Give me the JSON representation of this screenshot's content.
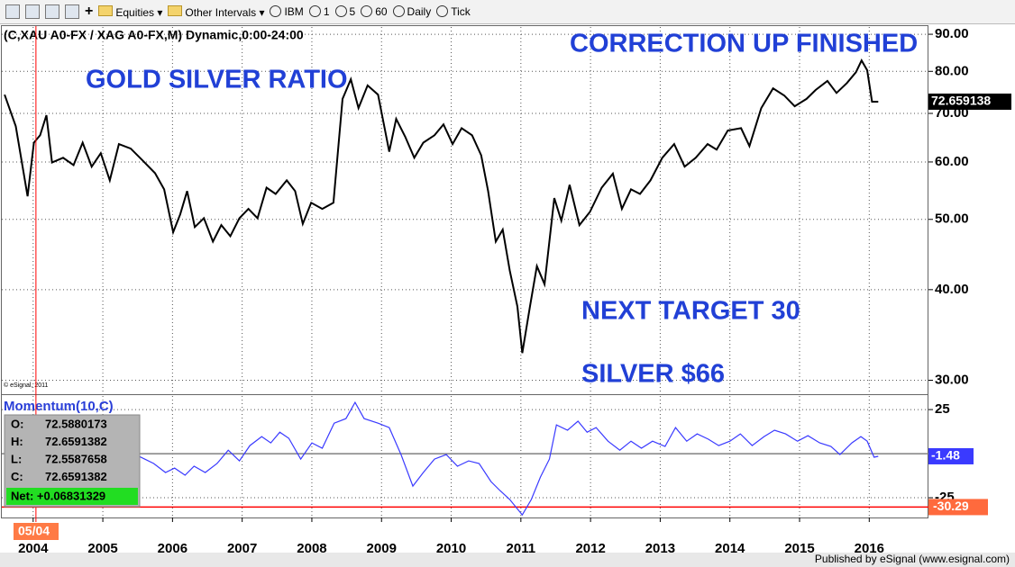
{
  "toolbar": {
    "items": [
      "Equities",
      "Other Intervals",
      "IBM",
      "1",
      "5",
      "60",
      "Daily",
      "Tick"
    ]
  },
  "chart_data": [
    {
      "type": "line",
      "title": "(C,XAU A0-FX / XAG A0-FX,M) Dynamic,0:00-24:00",
      "log": true,
      "color": "#000000",
      "x": [
        2003.59,
        2003.75,
        2003.92,
        2004.01,
        2004.1,
        2004.19,
        2004.27,
        2004.43,
        2004.58,
        2004.71,
        2004.84,
        2004.97,
        2005.1,
        2005.23,
        2005.4,
        2005.57,
        2005.75,
        2005.88,
        2006.01,
        2006.11,
        2006.21,
        2006.32,
        2006.45,
        2006.58,
        2006.7,
        2006.83,
        2006.96,
        2007.09,
        2007.22,
        2007.35,
        2007.48,
        2007.64,
        2007.76,
        2007.87,
        2007.99,
        2008.15,
        2008.31,
        2008.44,
        2008.56,
        2008.67,
        2008.8,
        2008.95,
        2009.11,
        2009.21,
        2009.34,
        2009.47,
        2009.6,
        2009.76,
        2009.89,
        2010.02,
        2010.15,
        2010.3,
        2010.43,
        2010.53,
        2010.64,
        2010.74,
        2010.84,
        2010.95,
        2011.02,
        2011.13,
        2011.23,
        2011.34,
        2011.48,
        2011.58,
        2011.7,
        2011.84,
        2011.99,
        2012.16,
        2012.32,
        2012.45,
        2012.58,
        2012.71,
        2012.86,
        2013.03,
        2013.2,
        2013.35,
        2013.51,
        2013.68,
        2013.81,
        2013.97,
        2014.16,
        2014.28,
        2014.45,
        2014.62,
        2014.78,
        2014.93,
        2015.1,
        2015.23,
        2015.4,
        2015.53,
        2015.68,
        2015.81,
        2015.89,
        2015.97,
        2016.04,
        2016.13
      ],
      "values": [
        74.3,
        67.2,
        53.8,
        63.8,
        65.3,
        69.6,
        59.9,
        60.8,
        59.4,
        63.8,
        59.1,
        61.7,
        56.6,
        63.5,
        62.6,
        60.3,
        57.9,
        55.0,
        48.0,
        50.8,
        54.7,
        48.8,
        50.2,
        46.6,
        49.1,
        47.4,
        50.2,
        51.7,
        50.2,
        55.3,
        54.2,
        56.6,
        54.7,
        49.3,
        52.7,
        51.7,
        52.7,
        73.3,
        78.0,
        71.2,
        76.5,
        74.3,
        62.0,
        68.8,
        65.0,
        60.8,
        63.8,
        65.3,
        67.6,
        63.5,
        66.8,
        65.3,
        61.3,
        54.7,
        46.6,
        48.4,
        42.5,
        37.9,
        32.7,
        37.9,
        43.1,
        40.7,
        53.5,
        49.8,
        55.8,
        49.1,
        51.2,
        55.3,
        57.8,
        51.7,
        55.0,
        54.2,
        56.6,
        60.8,
        63.5,
        59.1,
        60.8,
        63.5,
        62.4,
        66.3,
        66.8,
        63.1,
        71.2,
        75.8,
        74.1,
        71.6,
        73.3,
        75.4,
        77.6,
        74.7,
        77.1,
        79.8,
        82.8,
        80.3,
        72.66,
        72.66
      ],
      "xlim": [
        2003.55,
        2016.85
      ],
      "ylim": [
        28.7,
        92.1
      ],
      "yticks": [
        {
          "value": 30,
          "label": "30.00"
        },
        {
          "value": 40,
          "label": "40.00"
        },
        {
          "value": 50,
          "label": "50.00"
        },
        {
          "value": 60,
          "label": "60.00"
        },
        {
          "value": 70,
          "label": "70.00"
        },
        {
          "value": 80,
          "label": "80.00"
        },
        {
          "value": 90,
          "label": "90.00"
        }
      ],
      "grid": true,
      "last_value": 72.659138,
      "annotations": [
        "GOLD SILVER RATIO",
        "CORRECTION UP FINISHED",
        "NEXT TARGET 30",
        "SILVER $66"
      ],
      "watermark": "© eSignal, 2011"
    },
    {
      "type": "line",
      "title": "Momentum(10,C)",
      "color": "#3a3aff",
      "x": [
        2005.47,
        2005.6,
        2005.73,
        2005.9,
        2006.03,
        2006.18,
        2006.31,
        2006.47,
        2006.64,
        2006.8,
        2006.96,
        2007.11,
        2007.28,
        2007.41,
        2007.54,
        2007.67,
        2007.84,
        2008.0,
        2008.15,
        2008.32,
        2008.49,
        2008.62,
        2008.75,
        2008.95,
        2009.11,
        2009.28,
        2009.45,
        2009.6,
        2009.76,
        2009.93,
        2010.09,
        2010.25,
        2010.4,
        2010.57,
        2010.7,
        2010.84,
        2011.02,
        2011.15,
        2011.28,
        2011.41,
        2011.51,
        2011.67,
        2011.82,
        2011.95,
        2012.08,
        2012.25,
        2012.42,
        2012.58,
        2012.73,
        2012.89,
        2013.07,
        2013.22,
        2013.38,
        2013.53,
        2013.69,
        2013.84,
        2014.0,
        2014.15,
        2014.32,
        2014.49,
        2014.64,
        2014.8,
        2014.97,
        2015.12,
        2015.29,
        2015.45,
        2015.58,
        2015.75,
        2015.88,
        2015.97,
        2016.07,
        2016.13
      ],
      "values": [
        -0.5,
        -3.1,
        -5.6,
        -10.7,
        -8.2,
        -12.2,
        -7.1,
        -10.7,
        -5.6,
        2.0,
        -4.1,
        4.6,
        9.7,
        6.1,
        12.2,
        8.7,
        -3.1,
        6.1,
        3.1,
        17.3,
        19.9,
        29.1,
        19.9,
        17.3,
        14.8,
        -0.5,
        -18.4,
        -10.7,
        -3.1,
        -0.5,
        -7.1,
        -4.1,
        -5.6,
        -15.8,
        -20.9,
        -26.0,
        -34.7,
        -26.0,
        -13.3,
        -3.1,
        16.3,
        13.3,
        18.4,
        12.2,
        14.8,
        7.1,
        2.0,
        7.1,
        3.1,
        7.1,
        4.1,
        14.8,
        7.1,
        11.2,
        8.2,
        4.6,
        7.1,
        11.2,
        4.6,
        9.7,
        13.3,
        11.2,
        7.1,
        10.2,
        6.1,
        4.1,
        -0.5,
        6.1,
        9.7,
        7.1,
        -2.0,
        -1.48
      ],
      "xlim": [
        2003.55,
        2016.85
      ],
      "ylim": [
        -36.2,
        32.7
      ],
      "yticks": [
        -25,
        25
      ],
      "xticks": [
        2004,
        2005,
        2006,
        2007,
        2008,
        2009,
        2010,
        2011,
        2012,
        2013,
        2014,
        2015,
        2016
      ],
      "grid": true,
      "last_value": -1.48,
      "reference_lines": [
        {
          "value": 0,
          "color": "#808080"
        },
        {
          "value": -30.29,
          "color": "#ff0000"
        }
      ]
    }
  ],
  "info_box": {
    "rows": [
      [
        "O:",
        "72.5880173"
      ],
      [
        "H:",
        "72.6591382"
      ],
      [
        "L:",
        "72.5587658"
      ],
      [
        "C:",
        "72.6591382"
      ]
    ],
    "net": "Net: +0.06831329"
  },
  "cursor": {
    "x": 2004.04,
    "label": "05/04",
    "color": "#ff0000"
  },
  "footer": "Published by eSignal (www.esignal.com)"
}
